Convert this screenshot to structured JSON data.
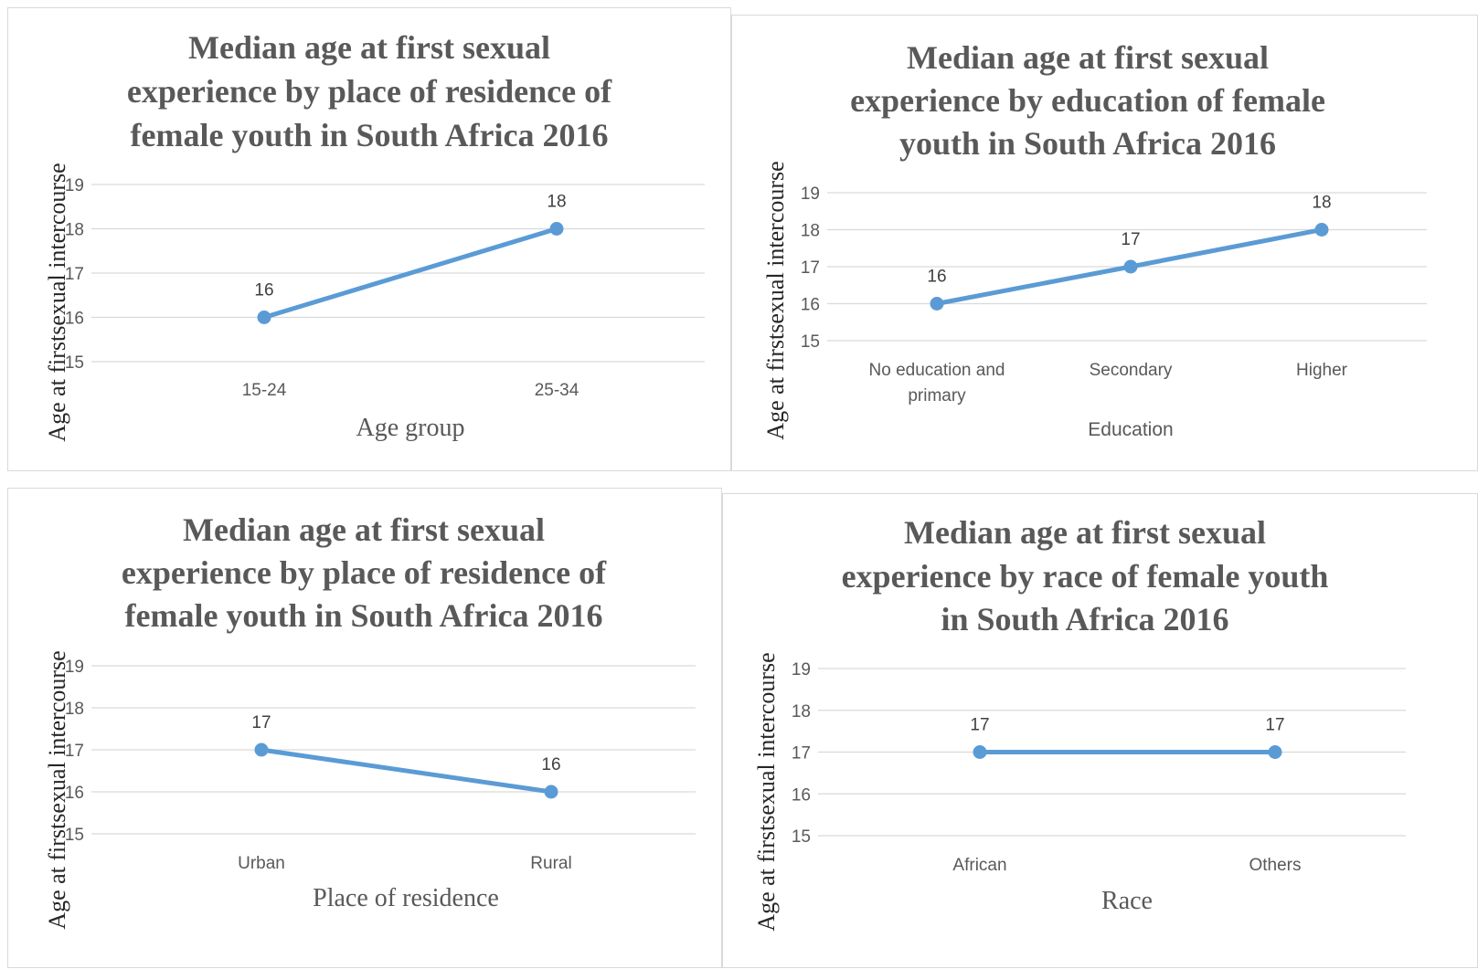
{
  "chart_data": [
    {
      "type": "line",
      "title": [
        "Median age at first sexual",
        "experience by place of residence of",
        "female youth in South Africa 2016"
      ],
      "xlabel": "Age group",
      "ylabel": "Age at firstsexual intercourse",
      "categories": [
        "15-24",
        "25-34"
      ],
      "values": [
        16,
        18
      ],
      "ylim": [
        15,
        19
      ],
      "yticks": [
        15,
        16,
        17,
        18,
        19
      ],
      "grid": true,
      "color": "#5b9bd5"
    },
    {
      "type": "line",
      "title": [
        "Median age at first sexual",
        "experience by education of female",
        "youth in South Africa 2016"
      ],
      "xlabel": "Education",
      "ylabel": "Age at firstsexual intercourse",
      "categories": [
        [
          "No education and",
          "primary"
        ],
        [
          "Secondary"
        ],
        [
          "Higher"
        ]
      ],
      "values": [
        16,
        17,
        18
      ],
      "ylim": [
        15,
        19
      ],
      "yticks": [
        15,
        16,
        17,
        18,
        19
      ],
      "grid": true,
      "color": "#5b9bd5"
    },
    {
      "type": "line",
      "title": [
        "Median age at first sexual",
        "experience by place of residence of",
        "female youth in South Africa 2016"
      ],
      "xlabel": "Place of residence",
      "ylabel": "Age at firstsexual intercourse",
      "categories": [
        "Urban",
        "Rural"
      ],
      "values": [
        17,
        16
      ],
      "ylim": [
        15,
        19
      ],
      "yticks": [
        15,
        16,
        17,
        18,
        19
      ],
      "grid": true,
      "color": "#5b9bd5"
    },
    {
      "type": "line",
      "title": [
        "Median age at first sexual",
        "experience by race of female youth",
        "in South Africa 2016"
      ],
      "xlabel": "Race",
      "ylabel": "Age at firstsexual intercourse",
      "categories": [
        "African",
        "Others"
      ],
      "values": [
        17,
        17
      ],
      "ylim": [
        15,
        19
      ],
      "yticks": [
        15,
        16,
        17,
        18,
        19
      ],
      "grid": true,
      "color": "#5b9bd5"
    }
  ]
}
